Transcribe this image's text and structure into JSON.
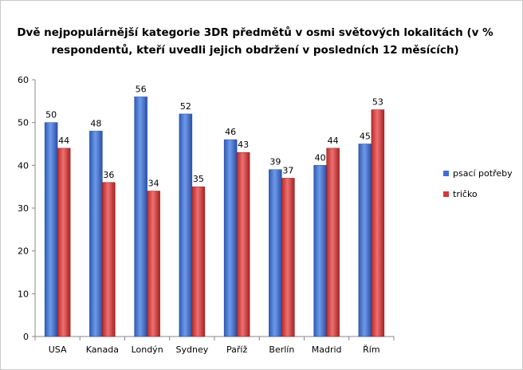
{
  "chart_data": {
    "type": "bar",
    "title": "Dvě nejpopulárnější  kategorie 3DR předmětů v osmi světových lokalitách  (v % respondentů, kteří uvedli jejich obdržení v posledních 12 měsících)",
    "categories": [
      "USA",
      "Kanada",
      "Londýn",
      "Sydney",
      "Paříž",
      "Berlín",
      "Madrid",
      "Řím"
    ],
    "series": [
      {
        "name": "psací potřeby",
        "color": "#3f6fd4",
        "values": [
          50,
          48,
          56,
          52,
          46,
          39,
          40,
          45
        ]
      },
      {
        "name": "tričko",
        "color": "#d33a3a",
        "values": [
          44,
          36,
          34,
          35,
          43,
          37,
          44,
          53
        ]
      }
    ],
    "ylim": [
      0,
      60
    ],
    "yticks": [
      0,
      10,
      20,
      30,
      40,
      50,
      60
    ],
    "grid": false,
    "legend_position": "right"
  }
}
